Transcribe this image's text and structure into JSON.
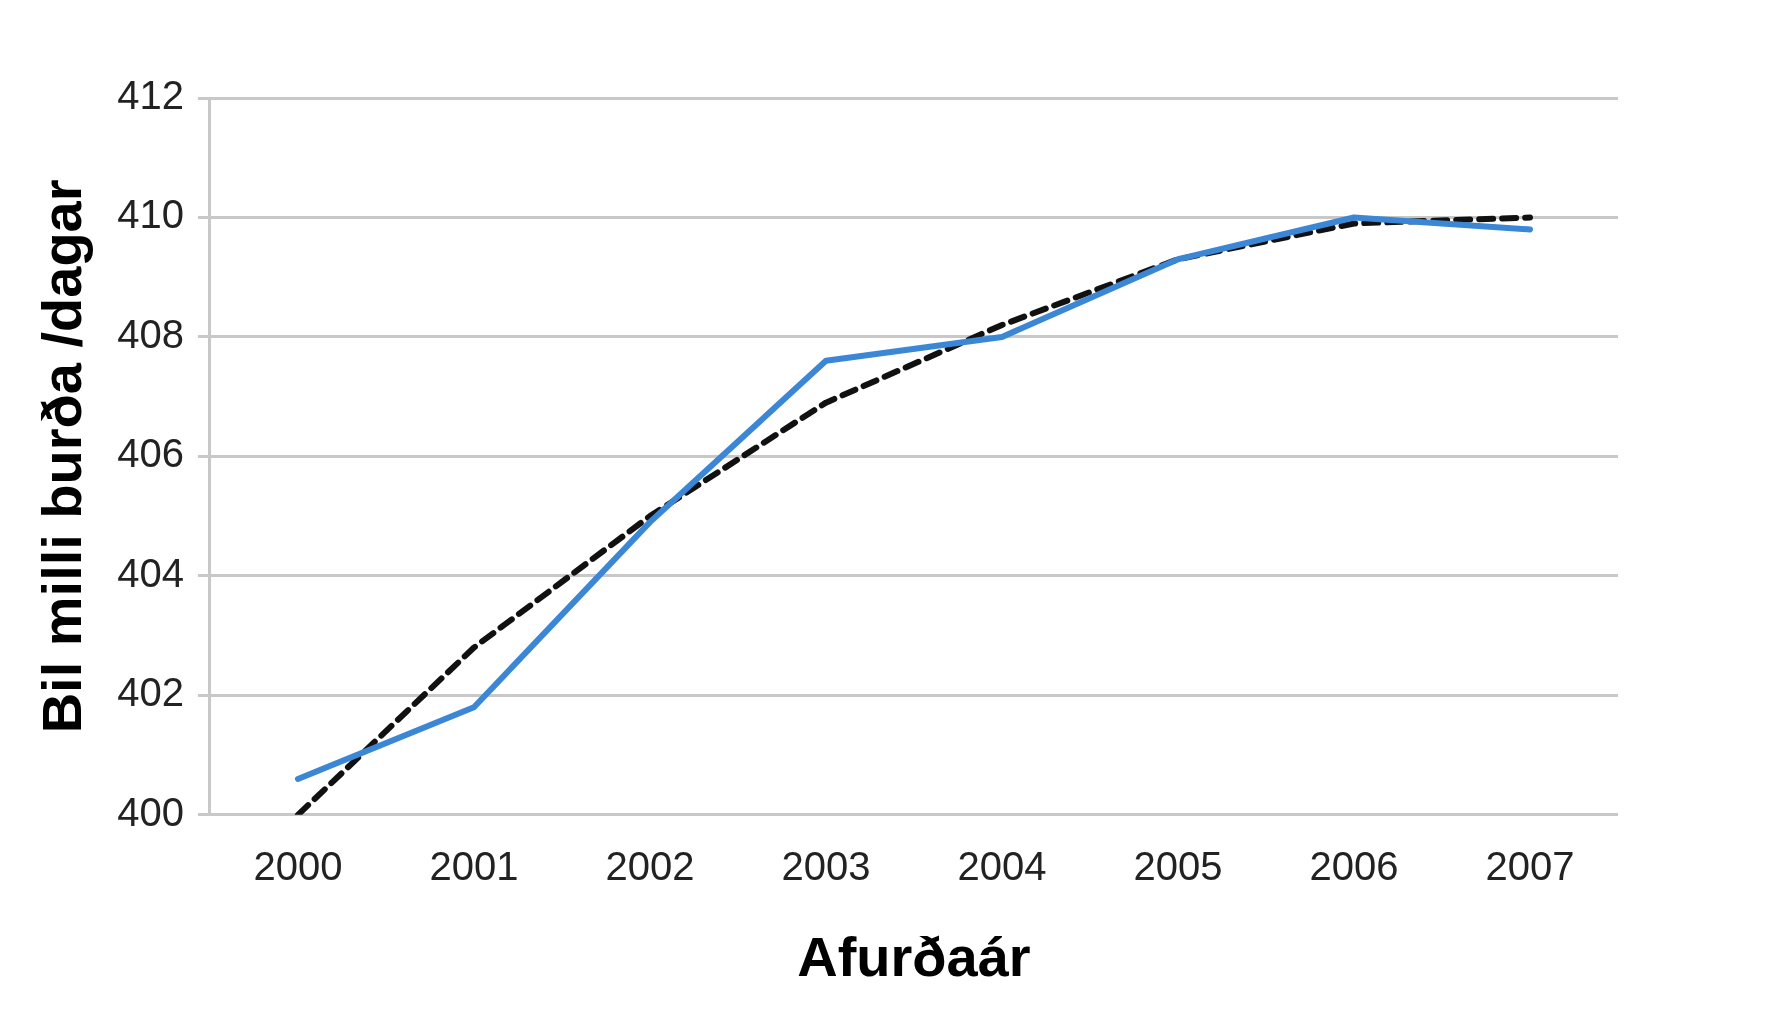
{
  "chart_data": {
    "type": "line",
    "xlabel": "Afurðaár",
    "ylabel": "Bil milli burða /dagar",
    "categories": [
      "2000",
      "2001",
      "2002",
      "2003",
      "2004",
      "2005",
      "2006",
      "2007"
    ],
    "series": [
      {
        "color": "#3b87d6",
        "values": [
          400.6,
          401.8,
          404.9,
          407.6,
          408.0,
          409.3,
          410.0,
          409.8
        ]
      },
      {
        "color": "#111111",
        "line_style": "dashed",
        "values": [
          400.0,
          402.8,
          405.0,
          406.9,
          408.2,
          409.3,
          409.9,
          410.0
        ]
      }
    ],
    "ylim": [
      400,
      412
    ],
    "yticks": [
      400,
      402,
      404,
      406,
      408,
      410,
      412
    ],
    "grid": "y",
    "legend": false,
    "marker": "none"
  }
}
